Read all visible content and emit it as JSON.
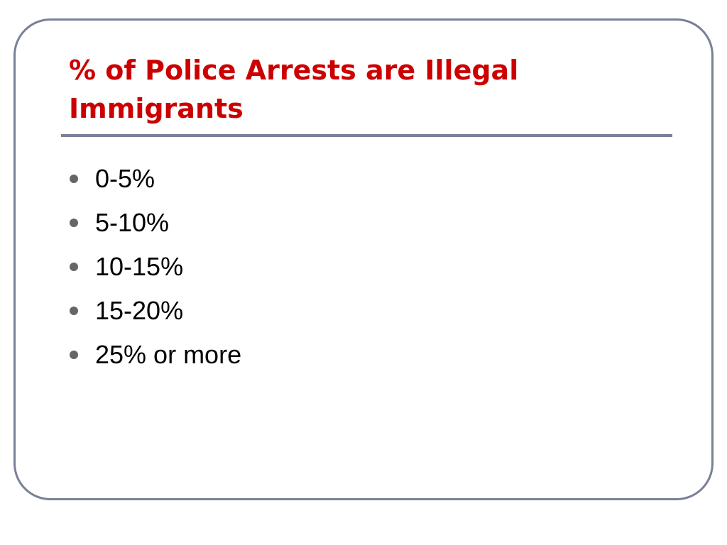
{
  "slide": {
    "title": "% of Police Arrests are Illegal Immigrants",
    "bullets": [
      "0-5%",
      "5-10%",
      "10-15%",
      "15-20%",
      "25% or more"
    ]
  },
  "colors": {
    "title": "#cc0000",
    "frame": "#7a8096",
    "bullet": "#666666"
  }
}
